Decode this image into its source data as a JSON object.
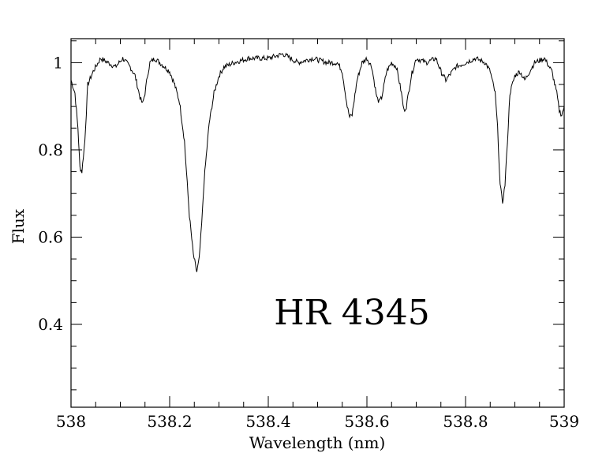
{
  "chart_data": {
    "type": "line",
    "xlabel": "Wavelength (nm)",
    "ylabel": "Flux",
    "annotation": "HR 4345",
    "xlim": [
      538,
      539
    ],
    "ylim": [
      0.21,
      1.055
    ],
    "x_ticks": [
      538,
      538.2,
      538.4,
      538.6,
      538.8,
      539
    ],
    "x_tick_labels": [
      "538",
      "538.2",
      "538.4",
      "538.6",
      "538.8",
      "539"
    ],
    "y_ticks": [
      0.4,
      0.6,
      0.8,
      1
    ],
    "y_tick_labels": [
      "0.4",
      "0.6",
      "0.8",
      "1"
    ],
    "grid": false,
    "series": [
      {
        "x": [
          538.0,
          538.008,
          538.014,
          538.018,
          538.022,
          538.028,
          538.034,
          538.045,
          538.06,
          538.075,
          538.09,
          538.105,
          538.12,
          538.13,
          538.14,
          538.145,
          538.15,
          538.155,
          538.16,
          538.17,
          538.18,
          538.19,
          538.2,
          538.21,
          538.22,
          538.23,
          538.24,
          538.248,
          538.255,
          538.26,
          538.265,
          538.27,
          538.28,
          538.29,
          538.3,
          538.31,
          538.33,
          538.36,
          538.4,
          538.43,
          538.46,
          538.49,
          538.52,
          538.54,
          538.55,
          538.56,
          538.565,
          538.57,
          538.58,
          538.59,
          538.6,
          538.61,
          538.62,
          538.625,
          538.63,
          538.64,
          538.65,
          538.66,
          538.67,
          538.675,
          538.68,
          538.69,
          538.7,
          538.72,
          538.74,
          538.75,
          538.76,
          538.78,
          538.8,
          538.82,
          538.84,
          538.85,
          538.86,
          538.865,
          538.87,
          538.875,
          538.88,
          538.885,
          538.89,
          538.9,
          538.91,
          538.92,
          538.94,
          538.96,
          538.975,
          538.985,
          538.99,
          538.995,
          539.0
        ],
        "y": [
          0.96,
          0.93,
          0.85,
          0.76,
          0.75,
          0.82,
          0.95,
          0.98,
          1.01,
          1.0,
          0.99,
          1.01,
          0.99,
          0.97,
          0.92,
          0.905,
          0.93,
          0.97,
          1.0,
          1.01,
          1.0,
          0.99,
          0.98,
          0.95,
          0.91,
          0.82,
          0.65,
          0.56,
          0.52,
          0.55,
          0.63,
          0.73,
          0.86,
          0.93,
          0.97,
          0.99,
          1.0,
          1.01,
          1.01,
          1.02,
          1.0,
          1.01,
          1.0,
          1.0,
          0.98,
          0.9,
          0.875,
          0.88,
          0.96,
          1.0,
          1.01,
          0.99,
          0.92,
          0.91,
          0.92,
          0.98,
          1.0,
          0.99,
          0.93,
          0.89,
          0.9,
          0.97,
          1.01,
          1.0,
          1.01,
          0.98,
          0.96,
          0.99,
          1.0,
          1.01,
          1.0,
          0.98,
          0.93,
          0.85,
          0.72,
          0.68,
          0.72,
          0.82,
          0.93,
          0.97,
          0.98,
          0.96,
          1.0,
          1.01,
          0.98,
          0.93,
          0.89,
          0.88,
          0.9
        ]
      }
    ]
  }
}
